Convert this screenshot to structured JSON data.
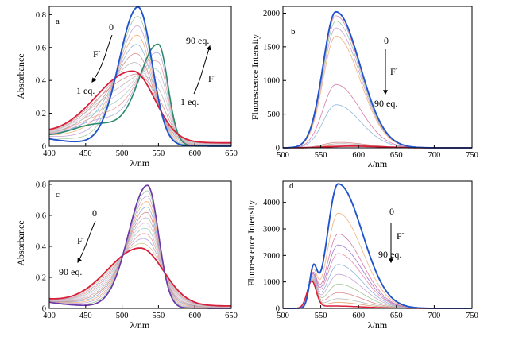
{
  "chart_data": [
    {
      "id": "a",
      "type": "line",
      "panel_label": "a",
      "ylabel": "Absorbance",
      "xlabel": "λ/nm",
      "xlim": [
        400,
        650
      ],
      "ylim": [
        0,
        0.85
      ],
      "xticks": [
        "400",
        "450",
        "500",
        "550",
        "600",
        "650"
      ],
      "yticks": [
        "0",
        "0.2",
        "0.4",
        "0.6",
        "0.8"
      ],
      "series_summary": {
        "first": {
          "name": "0 eq. F-",
          "peak_nm": 522,
          "peak_abs": 0.84
        },
        "mid": {
          "name": "1 eq. F-",
          "peak_nm": 515,
          "peak_abs": 0.43
        },
        "last": {
          "name": "90 eq. F-",
          "peak_nm": 550,
          "peak_abs": 0.6
        }
      },
      "annotations": {
        "top_label": "0",
        "ion_left": "F",
        "ion_left_sup": "-",
        "bottom_left": "1 eq.",
        "top_right": "90 eq.",
        "ion_right": "F",
        "ion_right_sup": "-",
        "bottom_right": "1 eq."
      }
    },
    {
      "id": "b",
      "type": "line",
      "panel_label": "b",
      "ylabel": "Fluorescence Intensity",
      "xlabel": "λ/nm",
      "xlim": [
        500,
        750
      ],
      "ylim": [
        0,
        2100
      ],
      "xticks": [
        "500",
        "550",
        "600",
        "650",
        "700",
        "750"
      ],
      "yticks": [
        "0",
        "500",
        "1000",
        "1500",
        "2000"
      ],
      "series_summary": {
        "first": {
          "name": "0 eq. F-",
          "peak_nm": 570,
          "peak_intensity": 2020
        },
        "last": {
          "name": "90 eq. F-",
          "peak_nm": 590,
          "peak_intensity": 25
        }
      },
      "annotations": {
        "top_label": "0",
        "ion": "F",
        "ion_sup": "-",
        "bottom_label": "90 eq."
      }
    },
    {
      "id": "c",
      "type": "line",
      "panel_label": "c",
      "ylabel": "Absorbance",
      "xlabel": "λ/nm",
      "xlim": [
        400,
        650
      ],
      "ylim": [
        0,
        0.82
      ],
      "xticks": [
        "400",
        "450",
        "500",
        "550",
        "600",
        "650"
      ],
      "yticks": [
        "0",
        "0.2",
        "0.4",
        "0.6",
        "0.8"
      ],
      "series_summary": {
        "first": {
          "name": "0 eq. F-",
          "peak_nm": 535,
          "peak_abs": 0.79
        },
        "last": {
          "name": "90 eq. F-",
          "peak_nm": 525,
          "peak_abs": 0.37
        }
      },
      "annotations": {
        "top_label": "0",
        "ion": "F",
        "ion_sup": "-",
        "bottom_label": "90 eq."
      }
    },
    {
      "id": "d",
      "type": "line",
      "panel_label": "d",
      "ylabel": "Fluorescence Intensity",
      "xlabel": "λ/nm",
      "xlim": [
        500,
        750
      ],
      "ylim": [
        0,
        4800
      ],
      "xticks": [
        "500",
        "550",
        "600",
        "650",
        "700",
        "750"
      ],
      "yticks": [
        "0",
        "1000",
        "2000",
        "3000",
        "4000"
      ],
      "series_summary": {
        "first": {
          "name": "0 eq. F-",
          "peak_nm": 573,
          "peak_intensity": 4700
        },
        "last": {
          "name": "90 eq. F-",
          "peak_nm": 538,
          "peak_intensity": 1000
        }
      },
      "annotations": {
        "top_label": "0",
        "ion": "F",
        "ion_sup": "-",
        "bottom_label": "90 eq."
      }
    }
  ]
}
